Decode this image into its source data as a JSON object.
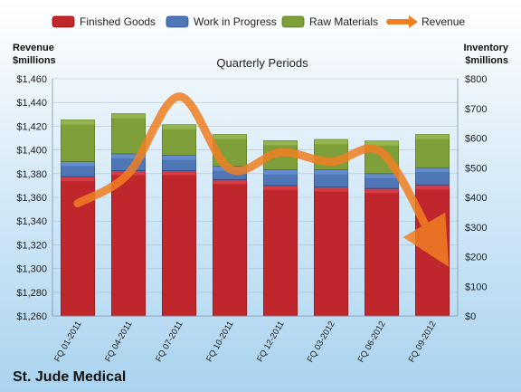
{
  "colors": {
    "finished": "#c0272d",
    "wip": "#4f77b8",
    "raw": "#7f9f3a",
    "revenue": "#f07f22",
    "bg_top": "#ffffff",
    "bg_bottom": "#a9d3ef"
  },
  "chart_data": {
    "type": "bar",
    "subtitle": "Quarterly Periods",
    "company": "St. Jude Medical",
    "left_axis_label": [
      "Revenue",
      "$millions"
    ],
    "right_axis_label": [
      "Inventory",
      "$millions"
    ],
    "categories": [
      "FQ 01-2011",
      "FQ 04-2011",
      "FQ 07-2011",
      "FQ 10-2011",
      "FQ 12-2011",
      "FQ 03-2012",
      "FQ 06-2012",
      "FQ 09-2012"
    ],
    "stacked": true,
    "series": [
      {
        "name": "Finished Goods",
        "axis": "right",
        "color_key": "finished",
        "values": [
          470,
          490,
          490,
          460,
          440,
          435,
          430,
          442
        ]
      },
      {
        "name": "Work in Progress",
        "axis": "right",
        "color_key": "wip",
        "values": [
          51,
          57,
          52,
          45,
          53,
          58,
          50,
          58
        ]
      },
      {
        "name": "Raw Materials",
        "axis": "right",
        "color_key": "raw",
        "values": [
          140,
          135,
          103,
          107,
          98,
          102,
          110,
          112
        ]
      },
      {
        "name": "Revenue",
        "axis": "left",
        "type": "line",
        "color_key": "revenue",
        "values": [
          1355,
          1380,
          1445,
          1384,
          1398,
          1390,
          1398,
          1325
        ]
      }
    ],
    "left_ticks": [
      "$1,260",
      "$1,280",
      "$1,300",
      "$1,320",
      "$1,340",
      "$1,360",
      "$1,380",
      "$1,400",
      "$1,420",
      "$1,440",
      "$1,460"
    ],
    "right_ticks": [
      "$0",
      "$100",
      "$200",
      "$300",
      "$400",
      "$500",
      "$600",
      "$700",
      "$800"
    ],
    "left_ylim": [
      1260,
      1460
    ],
    "right_ylim": [
      0,
      800
    ],
    "legend_position": "top",
    "grid": true
  }
}
